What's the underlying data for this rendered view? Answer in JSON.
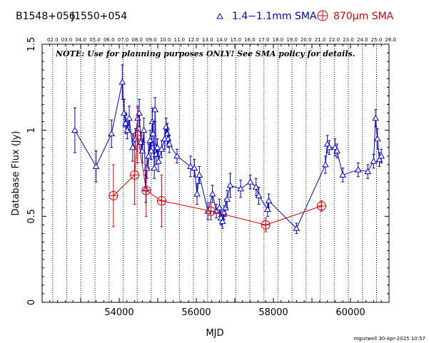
{
  "header": {
    "source_name": "B1548+056",
    "alt_name": "J1550+054",
    "legend_blue": "1.4−1.1mm SMA",
    "legend_red": "870μm SMA"
  },
  "note": "NOTE: Use for planning purposes ONLY! See SMA policy for details.",
  "credit": "mgurwell 30-Apr-2025 10:57",
  "colors": {
    "blue": "#0000cc",
    "red": "#dd0000",
    "axis": "#000000"
  },
  "chart_data": {
    "type": "scatter",
    "xlabel": "MJD",
    "ylabel": "Database Flux (Jy)",
    "xlim": [
      52000,
      61000
    ],
    "ylim": [
      0,
      1.5
    ],
    "x_ticks": [
      54000,
      56000,
      58000,
      60000
    ],
    "x_tick_labels": [
      "54000",
      "56000",
      "58000",
      "60000"
    ],
    "y_ticks": [
      0,
      0.5,
      1,
      1.5
    ],
    "y_tick_labels": [
      "0",
      "0.5",
      "1",
      "1.5"
    ],
    "top_axis_labels": [
      "02.0",
      "03.0",
      "04.0",
      "05.0",
      "06.0",
      "07.0",
      "08.0",
      "09.0",
      "10.0",
      "11.0",
      "12.0",
      "13.0",
      "14.0",
      "15.0",
      "16.0",
      "17.0",
      "18.0",
      "19.0",
      "20.0",
      "21.0",
      "22.0",
      "23.0",
      "24.0",
      "25.0",
      "26.0"
    ],
    "year_lines_mjd": [
      52275,
      52640,
      53005,
      53371,
      53736,
      54101,
      54466,
      54832,
      55197,
      55562,
      55927,
      56293,
      56658,
      57023,
      57388,
      57754,
      58119,
      58484,
      58849,
      59215,
      59580,
      59945,
      60310,
      60676,
      61041
    ],
    "series": [
      {
        "name": "1.4−1.1mm SMA",
        "marker": "triangle",
        "points": [
          [
            52850,
            1.0,
            0.13
          ],
          [
            53400,
            0.79,
            0.09
          ],
          [
            53800,
            0.98,
            0.08
          ],
          [
            54080,
            1.28,
            0.1
          ],
          [
            54130,
            1.1,
            0.08
          ],
          [
            54170,
            1.04,
            0.06
          ],
          [
            54210,
            1.0,
            0.05
          ],
          [
            54260,
            1.07,
            0.07
          ],
          [
            54350,
            0.9,
            0.08
          ],
          [
            54420,
            0.95,
            0.06
          ],
          [
            54480,
            1.07,
            0.07
          ],
          [
            54520,
            1.1,
            0.08
          ],
          [
            54560,
            0.93,
            0.06
          ],
          [
            54600,
            0.88,
            0.07
          ],
          [
            54640,
            1.0,
            0.07
          ],
          [
            54690,
            0.66,
            0.08
          ],
          [
            54720,
            0.78,
            0.06
          ],
          [
            54760,
            0.85,
            0.07
          ],
          [
            54800,
            0.94,
            0.06
          ],
          [
            54830,
            0.88,
            0.05
          ],
          [
            54860,
            1.05,
            0.08
          ],
          [
            54880,
            0.98,
            0.07
          ],
          [
            54910,
            0.78,
            0.06
          ],
          [
            54930,
            1.12,
            0.07
          ],
          [
            54960,
            0.86,
            0.06
          ],
          [
            54990,
            0.9,
            0.05
          ],
          [
            55020,
            0.82,
            0.06
          ],
          [
            55100,
            0.89,
            0.05
          ],
          [
            55180,
            0.95,
            0.06
          ],
          [
            55220,
            1.02,
            0.05
          ],
          [
            55250,
            0.98,
            0.06
          ],
          [
            55270,
            0.95,
            0.05
          ],
          [
            55300,
            0.92,
            0.05
          ],
          [
            55500,
            0.85,
            0.04
          ],
          [
            55850,
            0.79,
            0.06
          ],
          [
            55950,
            0.78,
            0.05
          ],
          [
            56020,
            0.63,
            0.06
          ],
          [
            56080,
            0.74,
            0.05
          ],
          [
            56300,
            0.53,
            0.05
          ],
          [
            56420,
            0.63,
            0.05
          ],
          [
            56520,
            0.53,
            0.04
          ],
          [
            56600,
            0.55,
            0.05
          ],
          [
            56640,
            0.49,
            0.04
          ],
          [
            56680,
            0.47,
            0.04
          ],
          [
            56720,
            0.52,
            0.04
          ],
          [
            56760,
            0.55,
            0.05
          ],
          [
            56800,
            0.6,
            0.05
          ],
          [
            56880,
            0.68,
            0.07
          ],
          [
            57150,
            0.66,
            0.05
          ],
          [
            57400,
            0.7,
            0.04
          ],
          [
            57550,
            0.67,
            0.05
          ],
          [
            57620,
            0.62,
            0.05
          ],
          [
            57850,
            0.54,
            0.04
          ],
          [
            57880,
            0.59,
            0.04
          ],
          [
            58600,
            0.43,
            0.03
          ],
          [
            59350,
            0.8,
            0.05
          ],
          [
            59400,
            0.92,
            0.05
          ],
          [
            59450,
            0.9,
            0.04
          ],
          [
            59600,
            0.9,
            0.05
          ],
          [
            59650,
            0.88,
            0.04
          ],
          [
            59800,
            0.74,
            0.04
          ],
          [
            60200,
            0.77,
            0.04
          ],
          [
            60450,
            0.76,
            0.04
          ],
          [
            60600,
            0.82,
            0.04
          ],
          [
            60650,
            1.07,
            0.05
          ],
          [
            60700,
            0.95,
            0.06
          ],
          [
            60750,
            0.83,
            0.04
          ],
          [
            60800,
            0.85,
            0.04
          ]
        ]
      },
      {
        "name": "870μm SMA",
        "marker": "circle-plus",
        "points": [
          [
            53850,
            0.62,
            0.18
          ],
          [
            54400,
            0.74,
            0.17
          ],
          [
            54480,
            0.97,
            0.16
          ],
          [
            54700,
            0.65,
            0.15
          ],
          [
            55100,
            0.59,
            0.15
          ],
          [
            56380,
            0.53,
            0.05
          ],
          [
            57800,
            0.45,
            0.04
          ],
          [
            59250,
            0.56,
            0.03
          ]
        ]
      }
    ]
  }
}
